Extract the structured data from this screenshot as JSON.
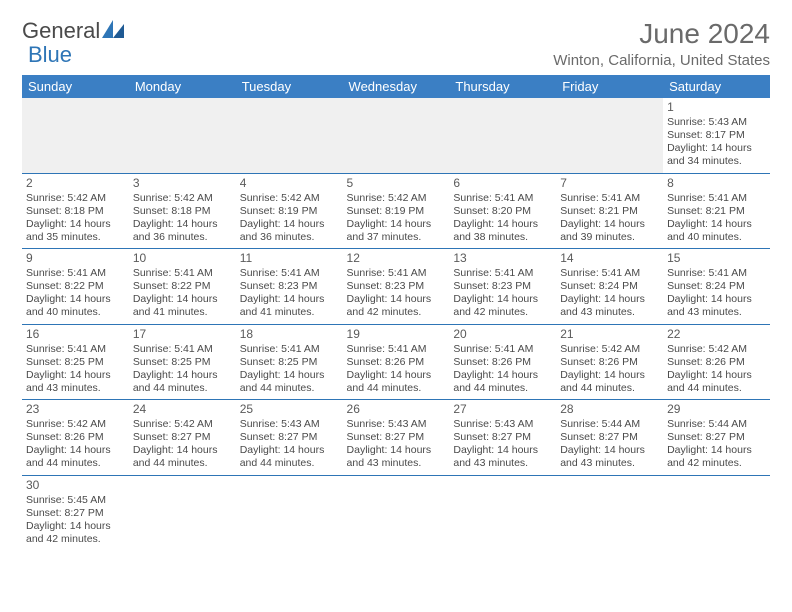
{
  "logo": {
    "text1": "General",
    "text2": "Blue"
  },
  "header": {
    "month": "June 2024",
    "location": "Winton, California, United States"
  },
  "colors": {
    "header_bg": "#3b7fc4",
    "border": "#2e75b6",
    "text": "#4a4a4a",
    "logo_blue": "#2e75b6"
  },
  "weekdays": [
    "Sunday",
    "Monday",
    "Tuesday",
    "Wednesday",
    "Thursday",
    "Friday",
    "Saturday"
  ],
  "weeks": [
    [
      null,
      null,
      null,
      null,
      null,
      null,
      {
        "n": "1",
        "sunrise": "5:43 AM",
        "sunset": "8:17 PM",
        "dl_h": "14",
        "dl_m": "34"
      }
    ],
    [
      {
        "n": "2",
        "sunrise": "5:42 AM",
        "sunset": "8:18 PM",
        "dl_h": "14",
        "dl_m": "35"
      },
      {
        "n": "3",
        "sunrise": "5:42 AM",
        "sunset": "8:18 PM",
        "dl_h": "14",
        "dl_m": "36"
      },
      {
        "n": "4",
        "sunrise": "5:42 AM",
        "sunset": "8:19 PM",
        "dl_h": "14",
        "dl_m": "36"
      },
      {
        "n": "5",
        "sunrise": "5:42 AM",
        "sunset": "8:19 PM",
        "dl_h": "14",
        "dl_m": "37"
      },
      {
        "n": "6",
        "sunrise": "5:41 AM",
        "sunset": "8:20 PM",
        "dl_h": "14",
        "dl_m": "38"
      },
      {
        "n": "7",
        "sunrise": "5:41 AM",
        "sunset": "8:21 PM",
        "dl_h": "14",
        "dl_m": "39"
      },
      {
        "n": "8",
        "sunrise": "5:41 AM",
        "sunset": "8:21 PM",
        "dl_h": "14",
        "dl_m": "40"
      }
    ],
    [
      {
        "n": "9",
        "sunrise": "5:41 AM",
        "sunset": "8:22 PM",
        "dl_h": "14",
        "dl_m": "40"
      },
      {
        "n": "10",
        "sunrise": "5:41 AM",
        "sunset": "8:22 PM",
        "dl_h": "14",
        "dl_m": "41"
      },
      {
        "n": "11",
        "sunrise": "5:41 AM",
        "sunset": "8:23 PM",
        "dl_h": "14",
        "dl_m": "41"
      },
      {
        "n": "12",
        "sunrise": "5:41 AM",
        "sunset": "8:23 PM",
        "dl_h": "14",
        "dl_m": "42"
      },
      {
        "n": "13",
        "sunrise": "5:41 AM",
        "sunset": "8:23 PM",
        "dl_h": "14",
        "dl_m": "42"
      },
      {
        "n": "14",
        "sunrise": "5:41 AM",
        "sunset": "8:24 PM",
        "dl_h": "14",
        "dl_m": "43"
      },
      {
        "n": "15",
        "sunrise": "5:41 AM",
        "sunset": "8:24 PM",
        "dl_h": "14",
        "dl_m": "43"
      }
    ],
    [
      {
        "n": "16",
        "sunrise": "5:41 AM",
        "sunset": "8:25 PM",
        "dl_h": "14",
        "dl_m": "43"
      },
      {
        "n": "17",
        "sunrise": "5:41 AM",
        "sunset": "8:25 PM",
        "dl_h": "14",
        "dl_m": "44"
      },
      {
        "n": "18",
        "sunrise": "5:41 AM",
        "sunset": "8:25 PM",
        "dl_h": "14",
        "dl_m": "44"
      },
      {
        "n": "19",
        "sunrise": "5:41 AM",
        "sunset": "8:26 PM",
        "dl_h": "14",
        "dl_m": "44"
      },
      {
        "n": "20",
        "sunrise": "5:41 AM",
        "sunset": "8:26 PM",
        "dl_h": "14",
        "dl_m": "44"
      },
      {
        "n": "21",
        "sunrise": "5:42 AM",
        "sunset": "8:26 PM",
        "dl_h": "14",
        "dl_m": "44"
      },
      {
        "n": "22",
        "sunrise": "5:42 AM",
        "sunset": "8:26 PM",
        "dl_h": "14",
        "dl_m": "44"
      }
    ],
    [
      {
        "n": "23",
        "sunrise": "5:42 AM",
        "sunset": "8:26 PM",
        "dl_h": "14",
        "dl_m": "44"
      },
      {
        "n": "24",
        "sunrise": "5:42 AM",
        "sunset": "8:27 PM",
        "dl_h": "14",
        "dl_m": "44"
      },
      {
        "n": "25",
        "sunrise": "5:43 AM",
        "sunset": "8:27 PM",
        "dl_h": "14",
        "dl_m": "44"
      },
      {
        "n": "26",
        "sunrise": "5:43 AM",
        "sunset": "8:27 PM",
        "dl_h": "14",
        "dl_m": "43"
      },
      {
        "n": "27",
        "sunrise": "5:43 AM",
        "sunset": "8:27 PM",
        "dl_h": "14",
        "dl_m": "43"
      },
      {
        "n": "28",
        "sunrise": "5:44 AM",
        "sunset": "8:27 PM",
        "dl_h": "14",
        "dl_m": "43"
      },
      {
        "n": "29",
        "sunrise": "5:44 AM",
        "sunset": "8:27 PM",
        "dl_h": "14",
        "dl_m": "42"
      }
    ],
    [
      {
        "n": "30",
        "sunrise": "5:45 AM",
        "sunset": "8:27 PM",
        "dl_h": "14",
        "dl_m": "42"
      },
      null,
      null,
      null,
      null,
      null,
      null
    ]
  ],
  "labels": {
    "sunrise": "Sunrise:",
    "sunset": "Sunset:",
    "daylight1": "Daylight:",
    "hours_word": "hours",
    "and_word": "and",
    "minutes_word": "minutes."
  }
}
